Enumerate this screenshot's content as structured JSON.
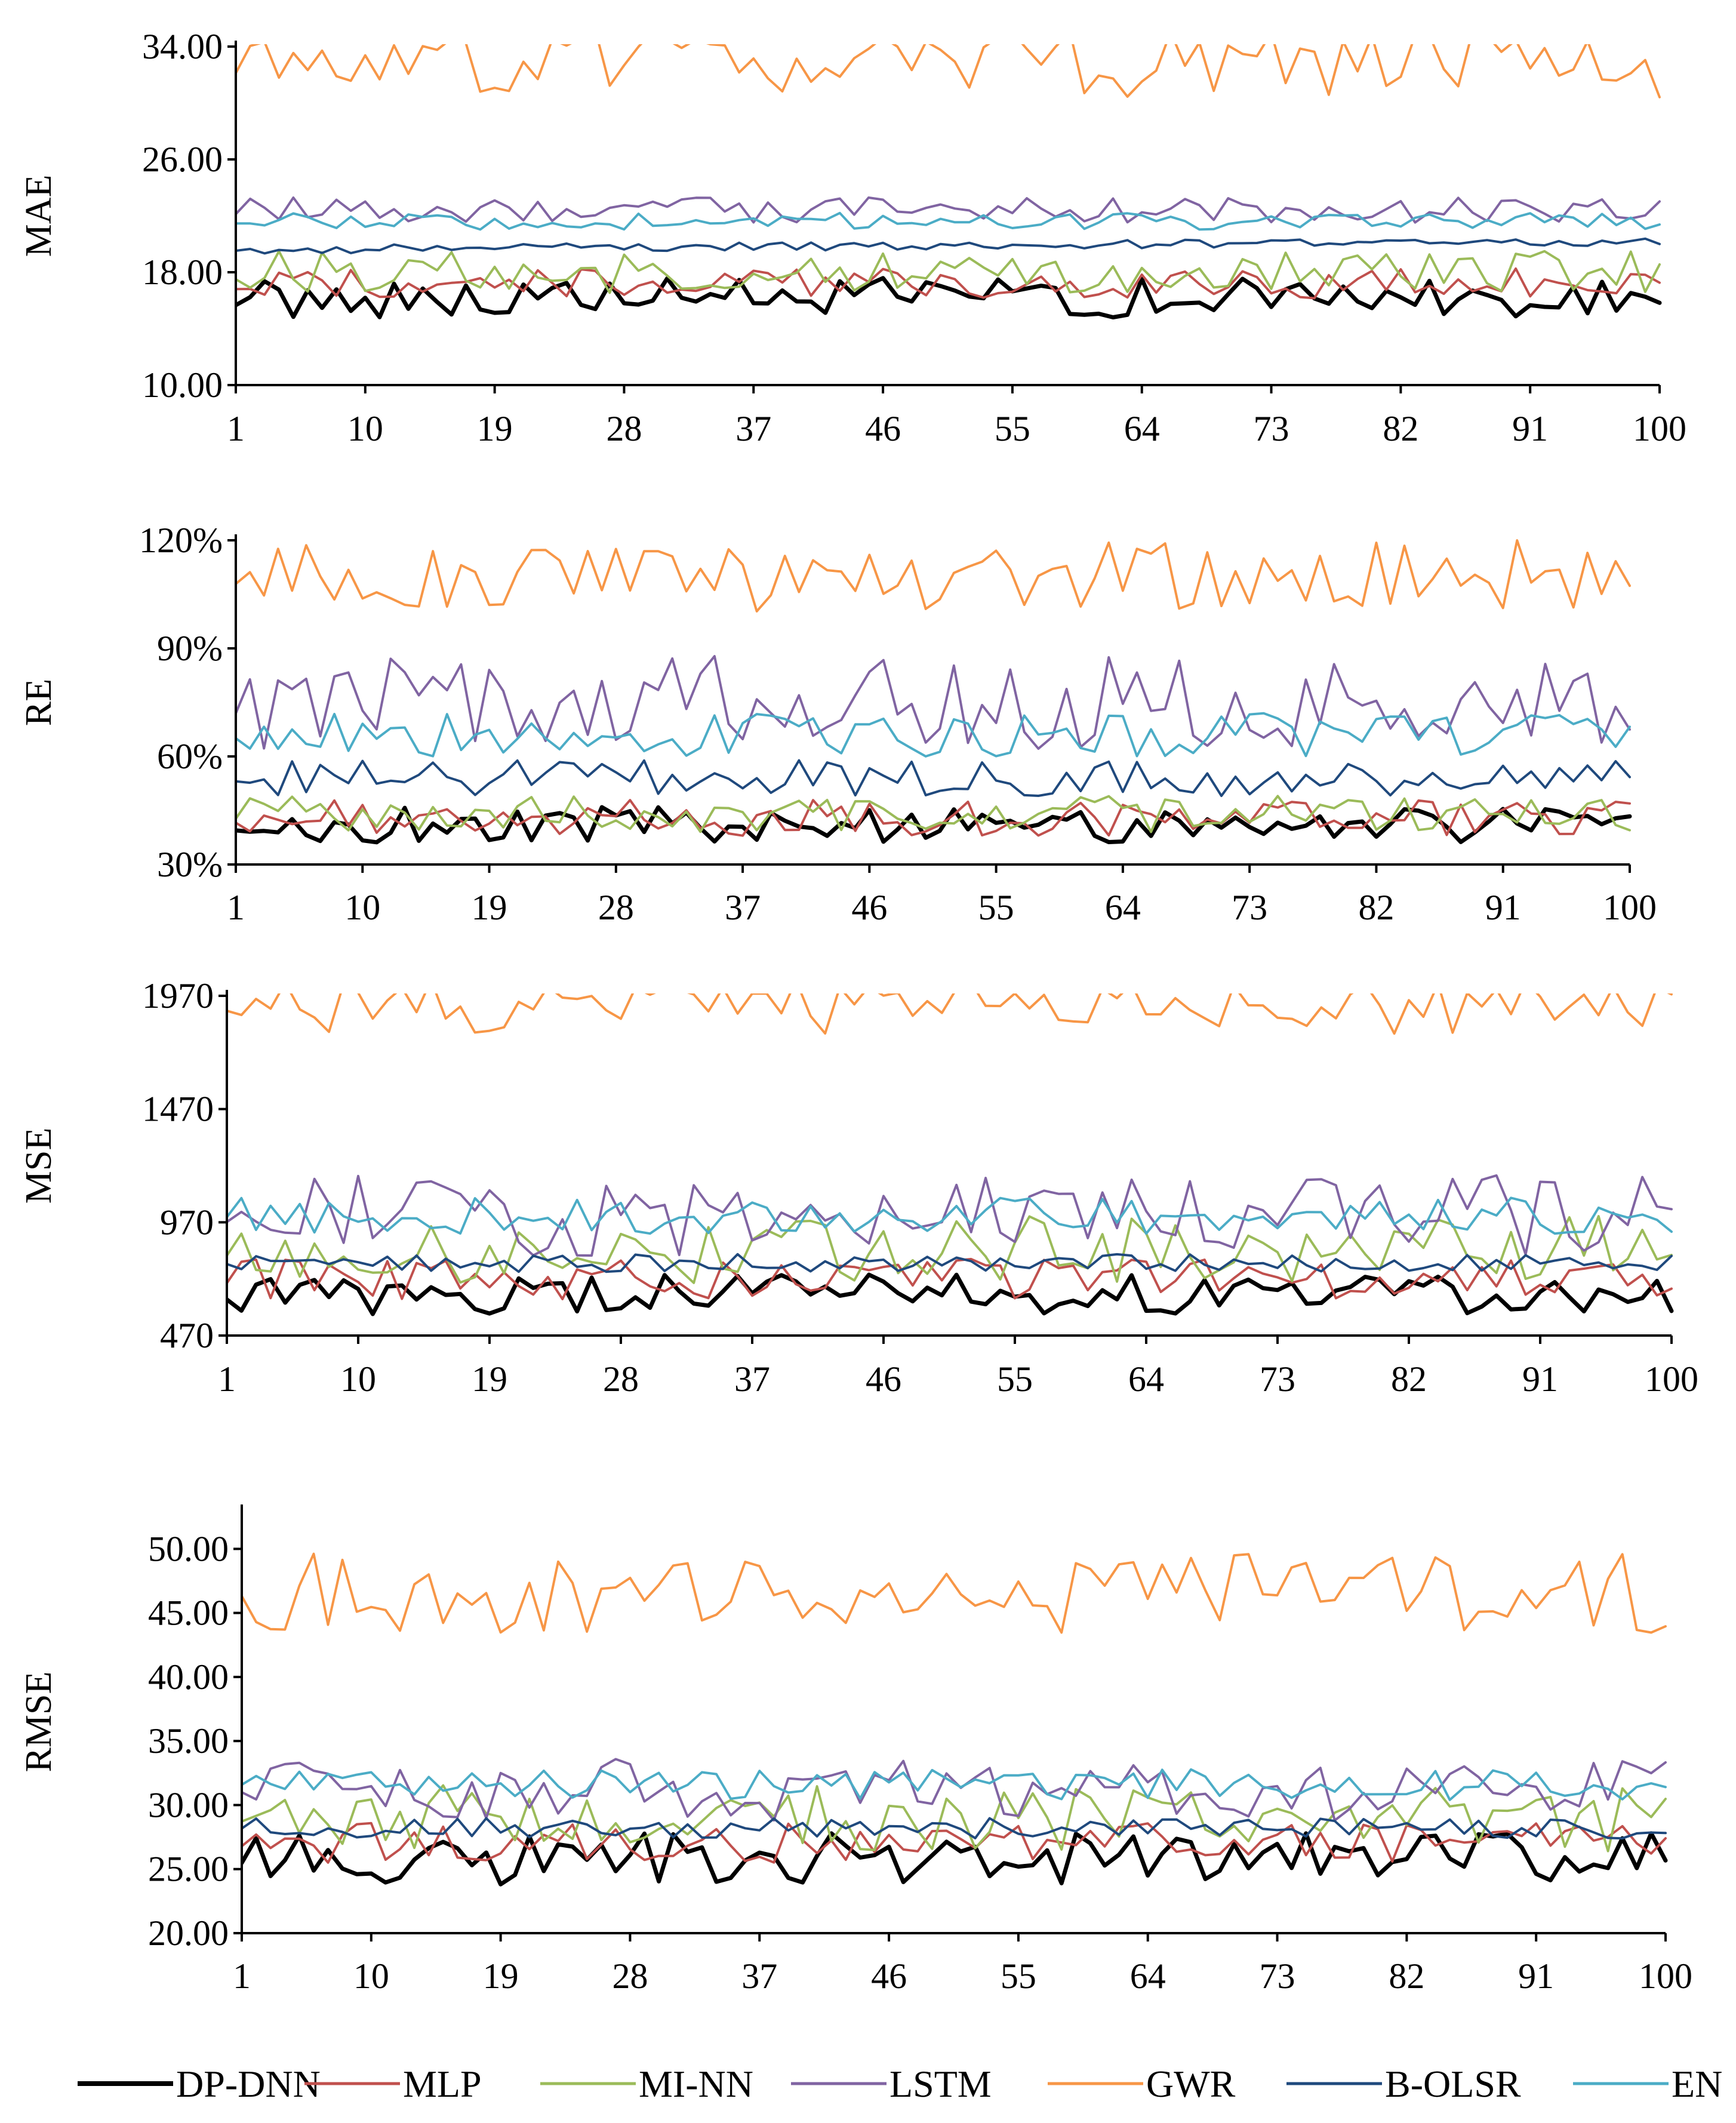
{
  "chart_data": {
    "type": "line",
    "legend": {
      "placement": "bottom",
      "series": [
        {
          "name": "DP-DNN",
          "color": "#000000"
        },
        {
          "name": "MLP",
          "color": "#c0504d"
        },
        {
          "name": "MI-NN",
          "color": "#9bbb59"
        },
        {
          "name": "LSTM",
          "color": "#8064a2"
        },
        {
          "name": "GWR",
          "color": "#f79646"
        },
        {
          "name": "B-OLSR",
          "color": "#1f497d"
        },
        {
          "name": "EN",
          "color": "#4bacc6"
        }
      ]
    },
    "panels": [
      {
        "id": "mae",
        "ylabel": "MAE",
        "ylim": [
          10,
          34
        ],
        "yticks": [
          "10.00",
          "18.00",
          "26.00",
          "34.00"
        ],
        "xlabels": [
          "1",
          "10",
          "19",
          "28",
          "37",
          "46",
          "55",
          "64",
          "73",
          "82",
          "91",
          "100"
        ],
        "x_range": [
          1,
          100
        ],
        "series": [
          {
            "name": "DP-DNN",
            "base": 16.2,
            "amp": 1.4
          },
          {
            "name": "MLP",
            "base": 17.2,
            "amp": 1.1
          },
          {
            "name": "MI-NN",
            "base": 18.0,
            "amp": 1.5
          },
          {
            "name": "LSTM",
            "base": 22.4,
            "amp": 0.9
          },
          {
            "name": "GWR",
            "base": 32.8,
            "amp": 2.4
          },
          {
            "name": "B-OLSR",
            "start": 19.6,
            "end": 20.2,
            "amp": 0.3
          },
          {
            "name": "EN",
            "base": 21.6,
            "amp": 0.6
          }
        ]
      },
      {
        "id": "re",
        "ylabel": "RE",
        "ylim": [
          30,
          120
        ],
        "yticks": [
          "30%",
          "60%",
          "90%",
          "120%"
        ],
        "xlabels": [
          "1",
          "10",
          "19",
          "28",
          "37",
          "46",
          "55",
          "64",
          "73",
          "82",
          "91",
          "100"
        ],
        "x_range": [
          1,
          100
        ],
        "series": [
          {
            "name": "DP-DNN",
            "base": 41,
            "amp": 5
          },
          {
            "name": "MLP",
            "base": 43,
            "amp": 5
          },
          {
            "name": "MI-NN",
            "base": 44,
            "amp": 5
          },
          {
            "name": "LSTM",
            "base": 75,
            "amp": 13
          },
          {
            "name": "GWR",
            "base": 110,
            "amp": 10
          },
          {
            "name": "B-OLSR",
            "base": 54,
            "amp": 5
          },
          {
            "name": "EN",
            "base": 66,
            "amp": 6
          }
        ]
      },
      {
        "id": "mse",
        "ylabel": "MSE",
        "ylim": [
          470,
          1970
        ],
        "yticks": [
          "470",
          "970",
          "1470",
          "1970"
        ],
        "xlabels": [
          "1",
          "10",
          "19",
          "28",
          "37",
          "46",
          "55",
          "64",
          "73",
          "82",
          "91",
          "100"
        ],
        "x_range": [
          1,
          100
        ],
        "series": [
          {
            "name": "DP-DNN",
            "base": 650,
            "amp": 90
          },
          {
            "name": "MLP",
            "base": 720,
            "amp": 90
          },
          {
            "name": "MI-NN",
            "base": 850,
            "amp": 150
          },
          {
            "name": "LSTM",
            "base": 1000,
            "amp": 180
          },
          {
            "name": "GWR",
            "base": 1920,
            "amp": 120
          },
          {
            "name": "B-OLSR",
            "base": 790,
            "amp": 40
          },
          {
            "name": "EN",
            "base": 1000,
            "amp": 80
          }
        ]
      },
      {
        "id": "rmse",
        "ylabel": "RMSE",
        "ylim": [
          20,
          53
        ],
        "yticks": [
          "20.00",
          "25.00",
          "30.00",
          "35.00",
          "40.00",
          "45.00",
          "50.00"
        ],
        "xlabels": [
          "1",
          "10",
          "19",
          "28",
          "37",
          "46",
          "55",
          "64",
          "73",
          "82",
          "91",
          "100"
        ],
        "x_range": [
          1,
          100
        ],
        "series": [
          {
            "name": "DP-DNN",
            "base": 25.8,
            "amp": 2.0
          },
          {
            "name": "MLP",
            "base": 27.0,
            "amp": 1.6
          },
          {
            "name": "MI-NN",
            "base": 29.0,
            "amp": 2.6
          },
          {
            "name": "LSTM",
            "base": 31.2,
            "amp": 2.4
          },
          {
            "name": "GWR",
            "base": 46.5,
            "amp": 3.2
          },
          {
            "name": "B-OLSR",
            "base": 28.2,
            "amp": 0.8
          },
          {
            "name": "EN",
            "base": 31.6,
            "amp": 1.2
          }
        ]
      }
    ]
  }
}
